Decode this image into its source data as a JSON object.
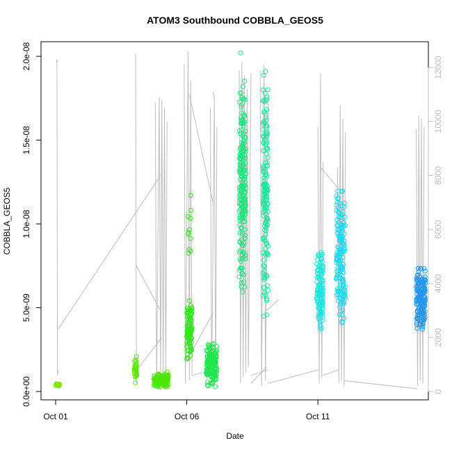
{
  "chart_data": {
    "type": "scatter",
    "title": "ATOM3 Southbound COBBLA_GEOS5",
    "xlabel": "Date",
    "ylabel": "COBBLA_GEOS5",
    "x_range_days": [
      0,
      14
    ],
    "x_ticks": [
      {
        "day": 0,
        "label": "Oct 01"
      },
      {
        "day": 5,
        "label": "Oct 06"
      },
      {
        "day": 10,
        "label": "Oct 11"
      }
    ],
    "ylim": [
      0,
      2.05e-08
    ],
    "y_ticks": [
      {
        "value": 0,
        "label": "0.0e+00"
      },
      {
        "value": 5e-09,
        "label": "5.0e-09"
      },
      {
        "value": 1e-08,
        "label": "1.0e-08"
      },
      {
        "value": 1.5e-08,
        "label": "1.5e-08"
      },
      {
        "value": 2e-08,
        "label": "2.0e-08"
      }
    ],
    "y2_range": [
      0,
      12600
    ],
    "y2_ticks": [
      {
        "value": 0,
        "label": "0"
      },
      {
        "value": 2000,
        "label": "2000"
      },
      {
        "value": 4000,
        "label": "4000"
      },
      {
        "value": 6000,
        "label": "6000"
      },
      {
        "value": 8000,
        "label": "8000"
      },
      {
        "value": 10000,
        "label": "10000"
      },
      {
        "value": 12000,
        "label": "12000"
      }
    ],
    "altitude_color": "#bdbdbd",
    "altitude_segments": [
      {
        "x": [
          0.03,
          0.05,
          0.07,
          0.09
        ],
        "y": [
          12200,
          12300,
          600,
          800
        ]
      },
      {
        "x": [
          0.09,
          4.0
        ],
        "y": [
          2300,
          8000
        ]
      },
      {
        "x": [
          3.05,
          3.08
        ],
        "y": [
          12500,
          300
        ]
      },
      {
        "x": [
          3.05,
          4.0
        ],
        "y": [
          4700,
          3000
        ]
      },
      {
        "x": [
          3.1,
          4.05
        ],
        "y": [
          800,
          2000
        ]
      },
      {
        "x": [
          3.8,
          3.85,
          3.95,
          4.0,
          4.05,
          4.1,
          4.15,
          4.2,
          4.25
        ],
        "y": [
          10700,
          200,
          10900,
          300,
          10800,
          400,
          10500,
          500,
          10000
        ]
      },
      {
        "x": [
          4.9,
          4.95,
          5.05,
          5.1,
          5.15,
          5.2
        ],
        "y": [
          12100,
          300,
          12600,
          400,
          11500,
          600
        ]
      },
      {
        "x": [
          5.1,
          6.0
        ],
        "y": [
          11000,
          7000
        ]
      },
      {
        "x": [
          5.2,
          6.0
        ],
        "y": [
          1500,
          2900
        ]
      },
      {
        "x": [
          5.2,
          6.05
        ],
        "y": [
          600,
          800
        ]
      },
      {
        "x": [
          5.9,
          5.95,
          6.05,
          6.1,
          6.15
        ],
        "y": [
          10500,
          200,
          10900,
          300,
          9800
        ]
      },
      {
        "x": [
          6.0,
          6.05
        ],
        "y": [
          11100,
          10800
        ]
      },
      {
        "x": [
          7.0,
          7.05,
          7.1,
          7.15,
          7.2,
          7.25,
          7.3,
          7.35,
          7.45
        ],
        "y": [
          11900,
          300,
          12200,
          500,
          11700,
          700,
          11200,
          900,
          11800
        ]
      },
      {
        "x": [
          7.45,
          8.1
        ],
        "y": [
          600,
          800
        ]
      },
      {
        "x": [
          7.45,
          8.05
        ],
        "y": [
          300,
          900
        ]
      },
      {
        "x": [
          7.8,
          7.85,
          7.95,
          8.0,
          8.1
        ],
        "y": [
          11900,
          200,
          12100,
          400,
          10700
        ]
      },
      {
        "x": [
          8.05,
          8.5
        ],
        "y": [
          3000,
          3400
        ]
      },
      {
        "x": [
          8.1,
          10.0
        ],
        "y": [
          300,
          800
        ]
      },
      {
        "x": [
          10.0,
          10.05,
          10.1,
          10.15,
          10.2
        ],
        "y": [
          9800,
          300,
          11800,
          500,
          8500
        ]
      },
      {
        "x": [
          10.1,
          10.8
        ],
        "y": [
          8300,
          7500
        ]
      },
      {
        "x": [
          10.2,
          10.8
        ],
        "y": [
          600,
          800
        ]
      },
      {
        "x": [
          10.75,
          10.8,
          10.85,
          10.9,
          10.95,
          11.0,
          11.05
        ],
        "y": [
          8300,
          300,
          10600,
          400,
          10100,
          200,
          9600
        ]
      },
      {
        "x": [
          11.0,
          13.8
        ],
        "y": [
          400,
          100
        ]
      },
      {
        "x": [
          13.75,
          13.8,
          13.85,
          13.9,
          13.95,
          14.0,
          14.05
        ],
        "y": [
          9700,
          200,
          10200,
          400,
          10100,
          300,
          9800
        ]
      }
    ],
    "clusters": [
      {
        "x": [
          0.0,
          0.15
        ],
        "y": [
          3e-10,
          5e-10
        ],
        "n": 25,
        "color": "#7fe600"
      },
      {
        "x": [
          3.0,
          3.1
        ],
        "y": [
          3e-10,
          2.3e-09
        ],
        "n": 30,
        "color": "#5ee600"
      },
      {
        "x": [
          3.75,
          4.3
        ],
        "y": [
          2e-10,
          1.2e-09
        ],
        "n": 120,
        "color": "#4ce600"
      },
      {
        "x": [
          5.0,
          5.2
        ],
        "y": [
          1.8e-09,
          5.5e-09
        ],
        "n": 110,
        "color": "#33e61a"
      },
      {
        "x": [
          5.05,
          5.2
        ],
        "y": [
          7.5e-09,
          1.17e-08
        ],
        "n": 10,
        "color": "#33e61a"
      },
      {
        "x": [
          5.75,
          6.15
        ],
        "y": [
          2e-10,
          3.1e-09
        ],
        "n": 150,
        "color": "#1fe64d"
      },
      {
        "x": [
          7.0,
          7.25
        ],
        "y": [
          5.5e-09,
          1.92e-08
        ],
        "n": 200,
        "color": "#19e67a"
      },
      {
        "x": [
          7.9,
          8.1
        ],
        "y": [
          4e-09,
          1.92e-08
        ],
        "n": 160,
        "color": "#1ae69a"
      },
      {
        "x": [
          9.95,
          10.2
        ],
        "y": [
          3.2e-09,
          8.5e-09
        ],
        "n": 120,
        "color": "#1ae6e0"
      },
      {
        "x": [
          10.7,
          11.05
        ],
        "y": [
          3.6e-09,
          1.27e-08
        ],
        "n": 170,
        "color": "#19d9f0"
      },
      {
        "x": [
          13.75,
          14.1
        ],
        "y": [
          3.5e-09,
          7.6e-09
        ],
        "n": 170,
        "color": "#2596ee"
      }
    ],
    "outliers": [
      {
        "x": 7.05,
        "y": 2.02e-08,
        "color": "#19e67a"
      },
      {
        "x": 8.0,
        "y": 1.91e-08,
        "color": "#1ae69a"
      },
      {
        "x": 5.15,
        "y": 1.17e-08,
        "color": "#33e61a"
      }
    ]
  }
}
